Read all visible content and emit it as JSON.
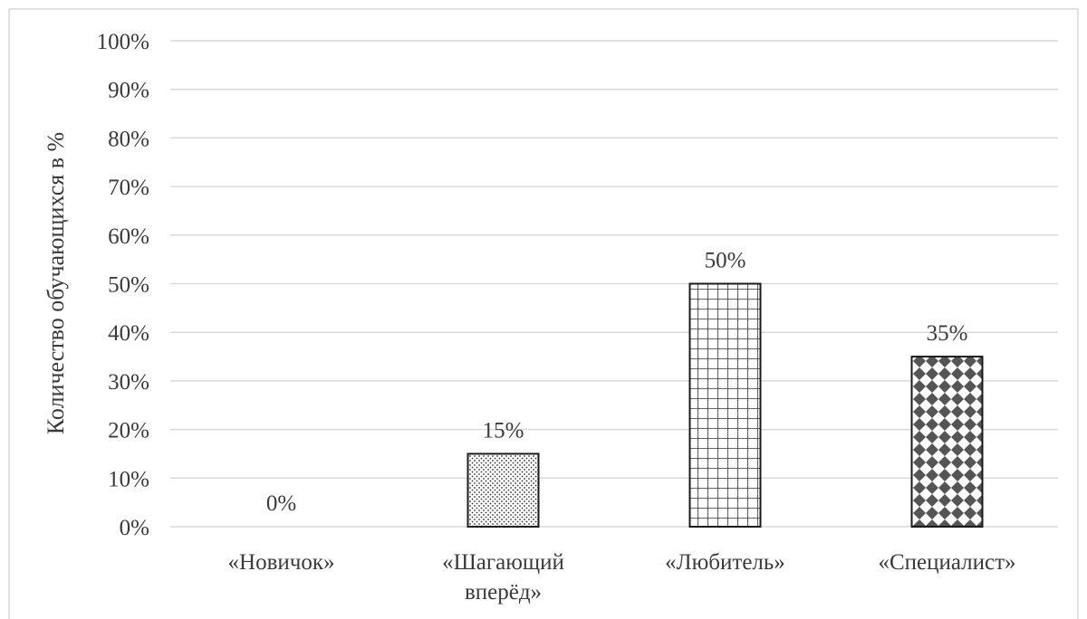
{
  "chart_data": {
    "type": "bar",
    "title": "",
    "xlabel": "",
    "ylabel": "Количество обучающихся в %",
    "ylim": [
      0,
      100
    ],
    "ytick_step": 10,
    "ytick_suffix": "%",
    "grid": true,
    "categories": [
      [
        "«Новичок»"
      ],
      [
        "«Шагающий",
        "вперёд»"
      ],
      [
        "«Любитель»"
      ],
      [
        "«Специалист»"
      ]
    ],
    "values": [
      0,
      15,
      50,
      35
    ],
    "data_labels": [
      "0%",
      "15%",
      "50%",
      "35%"
    ],
    "patterns": [
      "none",
      "dots",
      "grid",
      "diamonds"
    ],
    "colors": {
      "gridline": "#d9d9d9",
      "bar_stroke": "#1a1a1a",
      "pattern_fill": "#333333",
      "diamond_fill": "#555555",
      "text": "#3a3a3a",
      "frame": "#d9d9d9"
    }
  }
}
